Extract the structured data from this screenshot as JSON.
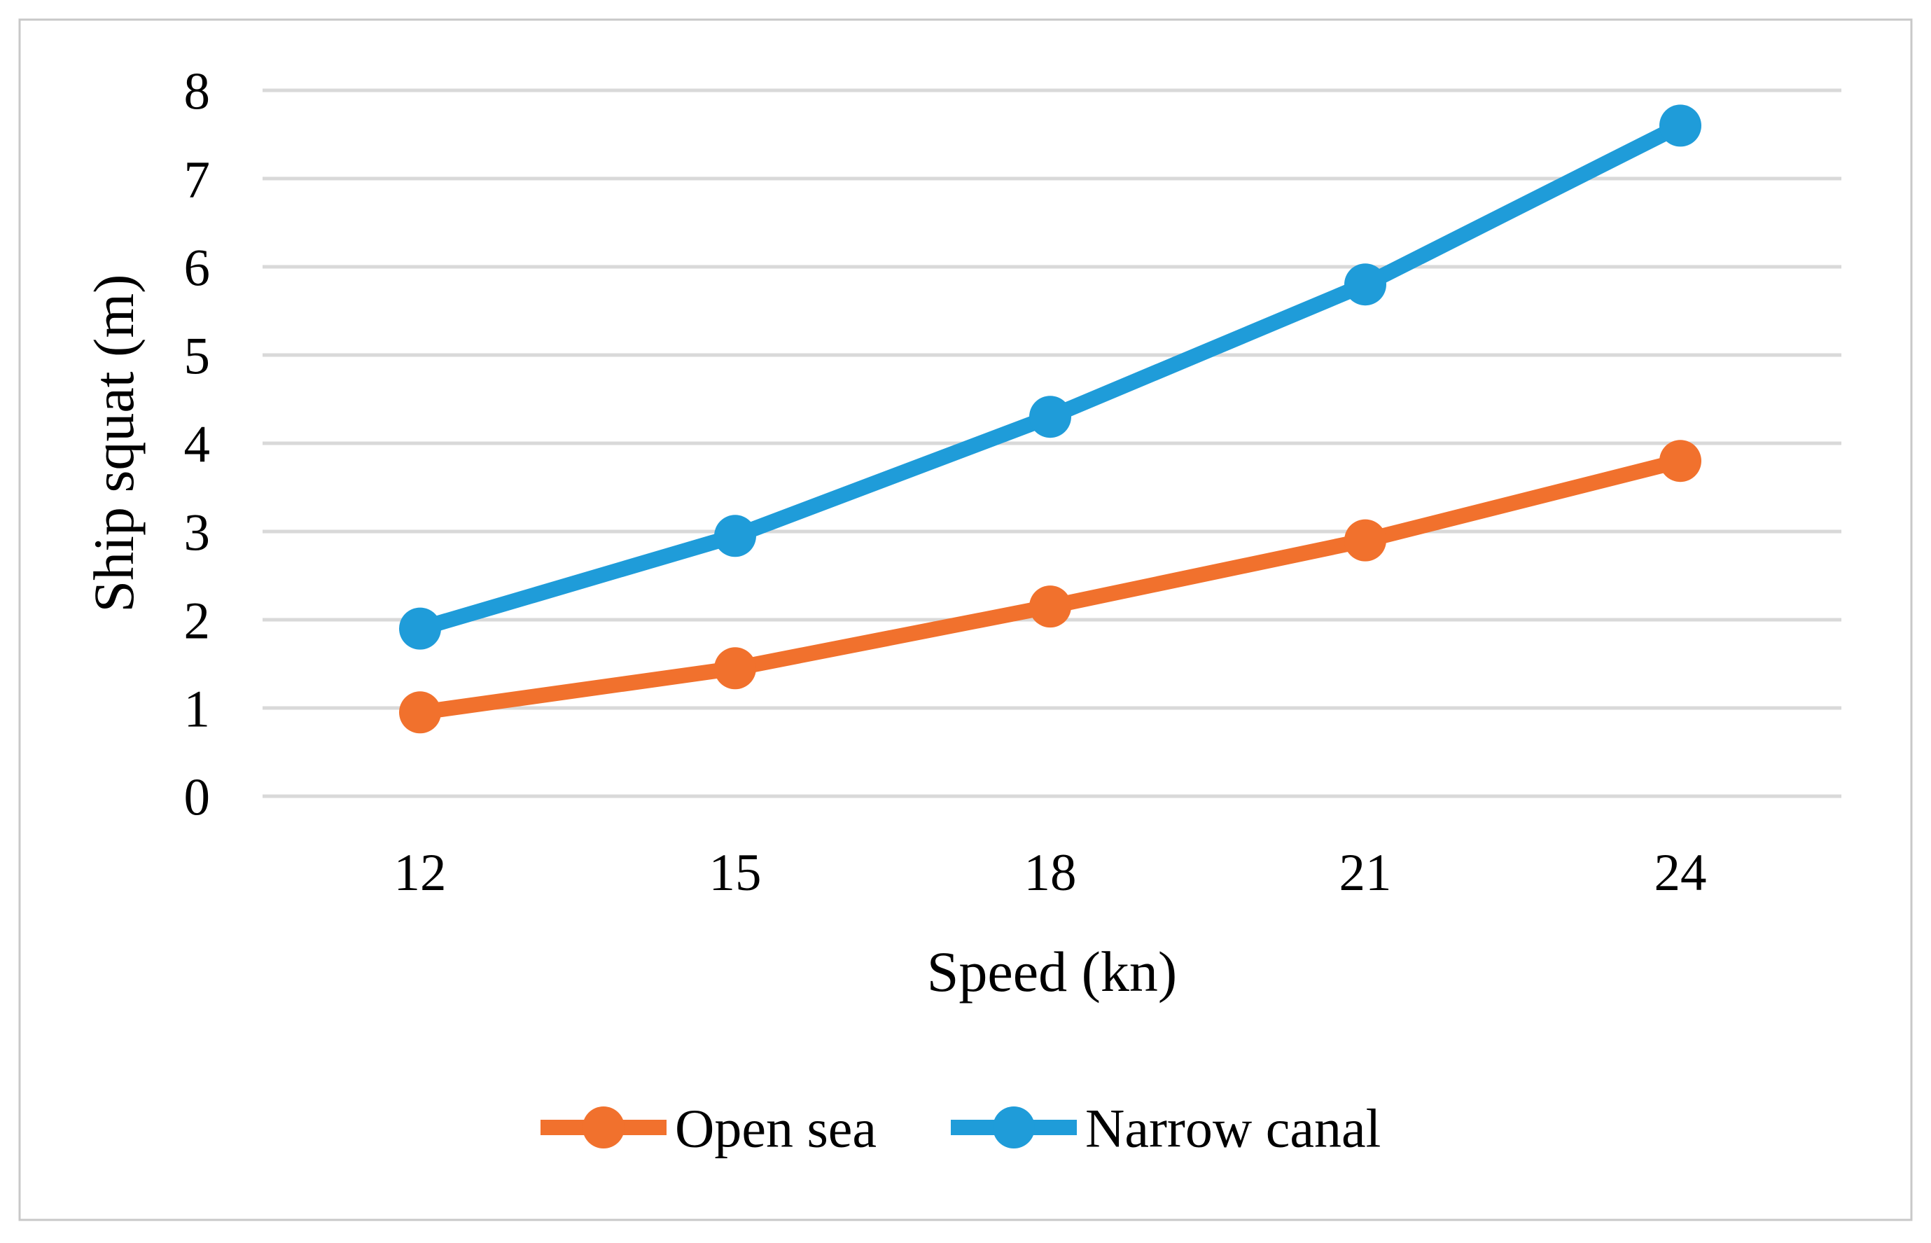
{
  "figure": {
    "background": "#FFFFFF",
    "border_color": "#C8C8C8"
  },
  "chart_data": {
    "type": "line",
    "title": "",
    "xlabel": "Speed (kn)",
    "ylabel": "Ship squat (m)",
    "categories": [
      12,
      15,
      18,
      21,
      24
    ],
    "x_tick_labels": [
      "12",
      "15",
      "18",
      "21",
      "24"
    ],
    "y_ticks": [
      0,
      1,
      2,
      3,
      4,
      5,
      6,
      7,
      8
    ],
    "y_tick_labels": [
      "0",
      "1",
      "2",
      "3",
      "4",
      "5",
      "6",
      "7",
      "8"
    ],
    "ylim": [
      0,
      8
    ],
    "grid": "horizontal",
    "gridline_color": "#D9D9D9",
    "text_color": "#000000",
    "legend_position": "bottom",
    "series": [
      {
        "name": "Open sea",
        "color": "#F1712D",
        "values": [
          0.95,
          1.45,
          2.15,
          2.9,
          3.8
        ]
      },
      {
        "name": "Narrow canal",
        "color": "#1F9CD9",
        "values": [
          1.9,
          2.95,
          4.3,
          5.8,
          7.6
        ]
      }
    ]
  }
}
